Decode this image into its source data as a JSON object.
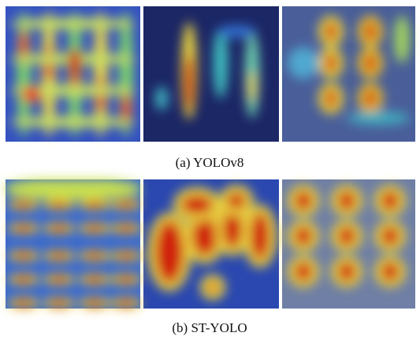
{
  "figure": {
    "rows": [
      {
        "caption": "(a) YOLOv8"
      },
      {
        "caption": "(b) ST-YOLO"
      }
    ]
  }
}
